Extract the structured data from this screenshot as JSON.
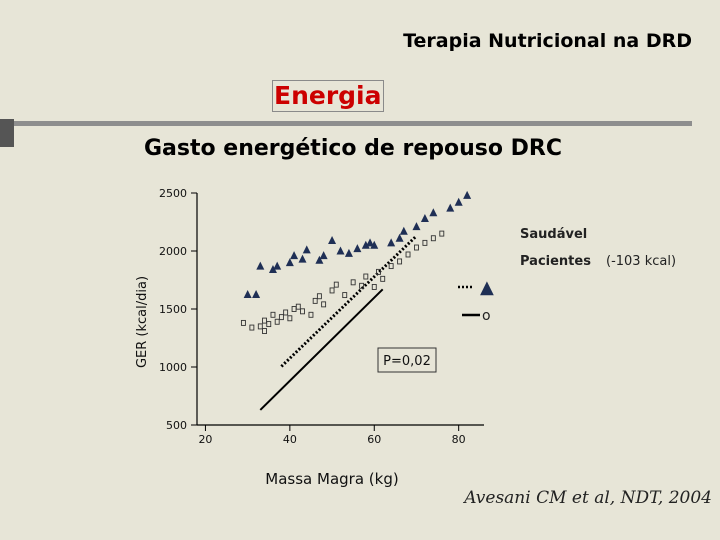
{
  "header": {
    "title": "Terapia Nutricional na DRD"
  },
  "section": {
    "title": "Energia"
  },
  "slide": {
    "subtitle": "Gasto energético de repouso DRC"
  },
  "citation": "Avesani CM et al, NDT, 2004",
  "colors": {
    "background": "#e7e5d7",
    "accent": "#cc0000",
    "marker": "#1f2f55"
  },
  "chart_data": {
    "type": "scatter",
    "title": "",
    "xlabel": "Massa Magra (kg)",
    "ylabel": "GER (kcal/dia)",
    "xlim": [
      18,
      86
    ],
    "ylim": [
      500,
      2500
    ],
    "x_ticks": [
      20,
      40,
      60,
      80
    ],
    "y_ticks": [
      500,
      1000,
      1500,
      2000,
      2500
    ],
    "legend": {
      "title": "Saudável",
      "series_label": "Pacientes",
      "difference": "(-103 kcal)",
      "healthy_symbol": "▲",
      "patient_symbol": "o"
    },
    "annotation": "P=0,02",
    "series": [
      {
        "name": "Saudável",
        "marker": "triangle",
        "points": [
          [
            30,
            1625
          ],
          [
            32,
            1625
          ],
          [
            33,
            1870
          ],
          [
            36,
            1840
          ],
          [
            37,
            1870
          ],
          [
            40,
            1900
          ],
          [
            41,
            1960
          ],
          [
            43,
            1930
          ],
          [
            44,
            2010
          ],
          [
            47,
            1920
          ],
          [
            48,
            1960
          ],
          [
            50,
            2090
          ],
          [
            52,
            2000
          ],
          [
            54,
            1980
          ],
          [
            56,
            2020
          ],
          [
            58,
            2050
          ],
          [
            59,
            2070
          ],
          [
            60,
            2050
          ],
          [
            64,
            2070
          ],
          [
            66,
            2110
          ],
          [
            67,
            2170
          ],
          [
            70,
            2210
          ],
          [
            72,
            2280
          ],
          [
            74,
            2330
          ],
          [
            78,
            2370
          ],
          [
            80,
            2420
          ],
          [
            82,
            2480
          ]
        ]
      },
      {
        "name": "Pacientes",
        "marker": "square",
        "points": [
          [
            29,
            1380
          ],
          [
            31,
            1340
          ],
          [
            33,
            1350
          ],
          [
            34,
            1310
          ],
          [
            34,
            1400
          ],
          [
            35,
            1370
          ],
          [
            36,
            1450
          ],
          [
            37,
            1390
          ],
          [
            38,
            1430
          ],
          [
            39,
            1470
          ],
          [
            40,
            1420
          ],
          [
            41,
            1500
          ],
          [
            42,
            1520
          ],
          [
            43,
            1480
          ],
          [
            45,
            1450
          ],
          [
            46,
            1570
          ],
          [
            47,
            1610
          ],
          [
            48,
            1540
          ],
          [
            50,
            1660
          ],
          [
            51,
            1710
          ],
          [
            53,
            1620
          ],
          [
            55,
            1730
          ],
          [
            57,
            1700
          ],
          [
            58,
            1780
          ],
          [
            60,
            1690
          ],
          [
            61,
            1820
          ],
          [
            62,
            1760
          ],
          [
            64,
            1870
          ],
          [
            66,
            1910
          ],
          [
            68,
            1970
          ],
          [
            70,
            2030
          ],
          [
            72,
            2070
          ],
          [
            74,
            2110
          ],
          [
            76,
            2150
          ]
        ]
      }
    ],
    "regression_lines": [
      {
        "name": "Saudável",
        "style": "dotted",
        "x": [
          38,
          70
        ],
        "y": [
          1005,
          2130
        ]
      },
      {
        "name": "Pacientes",
        "style": "solid",
        "x": [
          33,
          62
        ],
        "y": [
          630,
          1670
        ]
      }
    ]
  }
}
